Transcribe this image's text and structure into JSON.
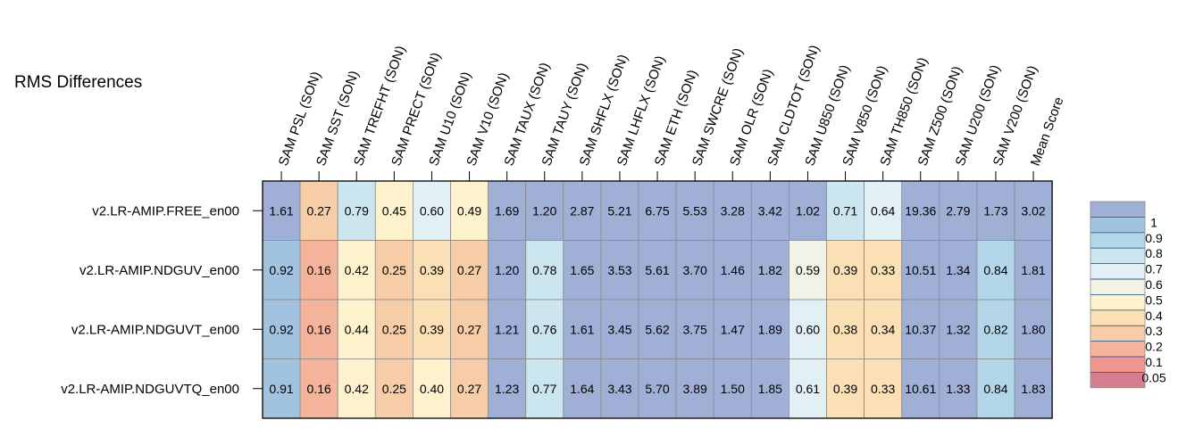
{
  "chart_data": {
    "type": "heatmap",
    "title": "RMS Differences",
    "columns": [
      "SAM PSL (SON)",
      "SAM SST (SON)",
      "SAM TREFHT (SON)",
      "SAM PRECT (SON)",
      "SAM U10 (SON)",
      "SAM V10 (SON)",
      "SAM TAUX (SON)",
      "SAM TAUY (SON)",
      "SAM SHFLX (SON)",
      "SAM LHFLX (SON)",
      "SAM ETH (SON)",
      "SAM SWCRE (SON)",
      "SAM OLR (SON)",
      "SAM CLDTOT (SON)",
      "SAM U850 (SON)",
      "SAM V850 (SON)",
      "SAM TH850 (SON)",
      "SAM Z500 (SON)",
      "SAM U200 (SON)",
      "SAM V200 (SON)",
      "Mean Score"
    ],
    "rows": [
      "v2.LR-AMIP.FREE_en00",
      "v2.LR-AMIP.NDGUV_en00",
      "v2.LR-AMIP.NDGUVT_en00",
      "v2.LR-AMIP.NDGUVTQ_en00"
    ],
    "values": [
      [
        1.61,
        0.27,
        0.79,
        0.45,
        0.6,
        0.49,
        1.69,
        1.2,
        2.87,
        5.21,
        6.75,
        5.53,
        3.28,
        3.42,
        1.02,
        0.71,
        0.64,
        19.36,
        2.79,
        1.73,
        3.02
      ],
      [
        0.92,
        0.16,
        0.42,
        0.25,
        0.39,
        0.27,
        1.2,
        0.78,
        1.65,
        3.53,
        5.61,
        3.7,
        1.46,
        1.82,
        0.59,
        0.39,
        0.33,
        10.51,
        1.34,
        0.84,
        1.81
      ],
      [
        0.92,
        0.16,
        0.44,
        0.25,
        0.39,
        0.27,
        1.21,
        0.76,
        1.61,
        3.45,
        5.62,
        3.75,
        1.47,
        1.89,
        0.6,
        0.38,
        0.34,
        10.37,
        1.32,
        0.82,
        1.8
      ],
      [
        0.91,
        0.16,
        0.42,
        0.25,
        0.4,
        0.27,
        1.23,
        0.77,
        1.64,
        3.43,
        5.7,
        3.89,
        1.5,
        1.85,
        0.61,
        0.39,
        0.33,
        10.61,
        1.33,
        0.84,
        1.83
      ]
    ],
    "colors": [
      [
        1.61,
        0.27,
        0.79,
        0.45,
        0.6,
        0.49,
        1.69,
        1.2,
        2.87,
        5.21,
        6.75,
        5.53,
        3.28,
        3.42,
        1.02,
        0.71,
        0.64,
        19.36,
        2.79,
        1.73,
        3.02
      ],
      [
        0.92,
        0.16,
        0.42,
        0.25,
        0.39,
        0.27,
        1.2,
        0.78,
        1.65,
        3.53,
        5.61,
        3.7,
        1.46,
        1.82,
        0.59,
        0.39,
        0.33,
        10.51,
        1.34,
        0.84,
        1.81
      ],
      [
        0.92,
        0.16,
        0.44,
        0.25,
        0.39,
        0.27,
        1.21,
        0.76,
        1.61,
        3.45,
        5.62,
        3.75,
        1.47,
        1.89,
        0.6,
        0.38,
        0.34,
        10.37,
        1.32,
        0.82,
        1.8
      ],
      [
        0.91,
        0.16,
        0.42,
        0.25,
        0.4,
        0.27,
        1.23,
        0.77,
        1.64,
        3.43,
        5.7,
        3.89,
        1.5,
        1.85,
        0.61,
        0.39,
        0.33,
        10.61,
        1.33,
        0.84,
        1.83
      ]
    ],
    "colorbar": {
      "boundaries": [
        0.0,
        0.05,
        0.1,
        0.2,
        0.3,
        0.4,
        0.5,
        0.6,
        0.7,
        0.8,
        0.9,
        1.0,
        100
      ],
      "colors": [
        "#d47f8e",
        "#f0968e",
        "#f4b49c",
        "#f7cda8",
        "#fbe0b6",
        "#fdf2cc",
        "#f2f2e6",
        "#e2eff4",
        "#cce6ef",
        "#b3d6e8",
        "#a2c3df",
        "#a0afd6"
      ],
      "tick_labels": [
        "1",
        "0.9",
        "0.8",
        "0.7",
        "0.6",
        "0.5",
        "0.4",
        "0.3",
        "0.2",
        "0.1",
        "0.05"
      ],
      "tick_values": [
        1.0,
        0.9,
        0.8,
        0.7,
        0.6,
        0.5,
        0.4,
        0.3,
        0.2,
        0.1,
        0.05
      ],
      "placement": "right"
    }
  }
}
